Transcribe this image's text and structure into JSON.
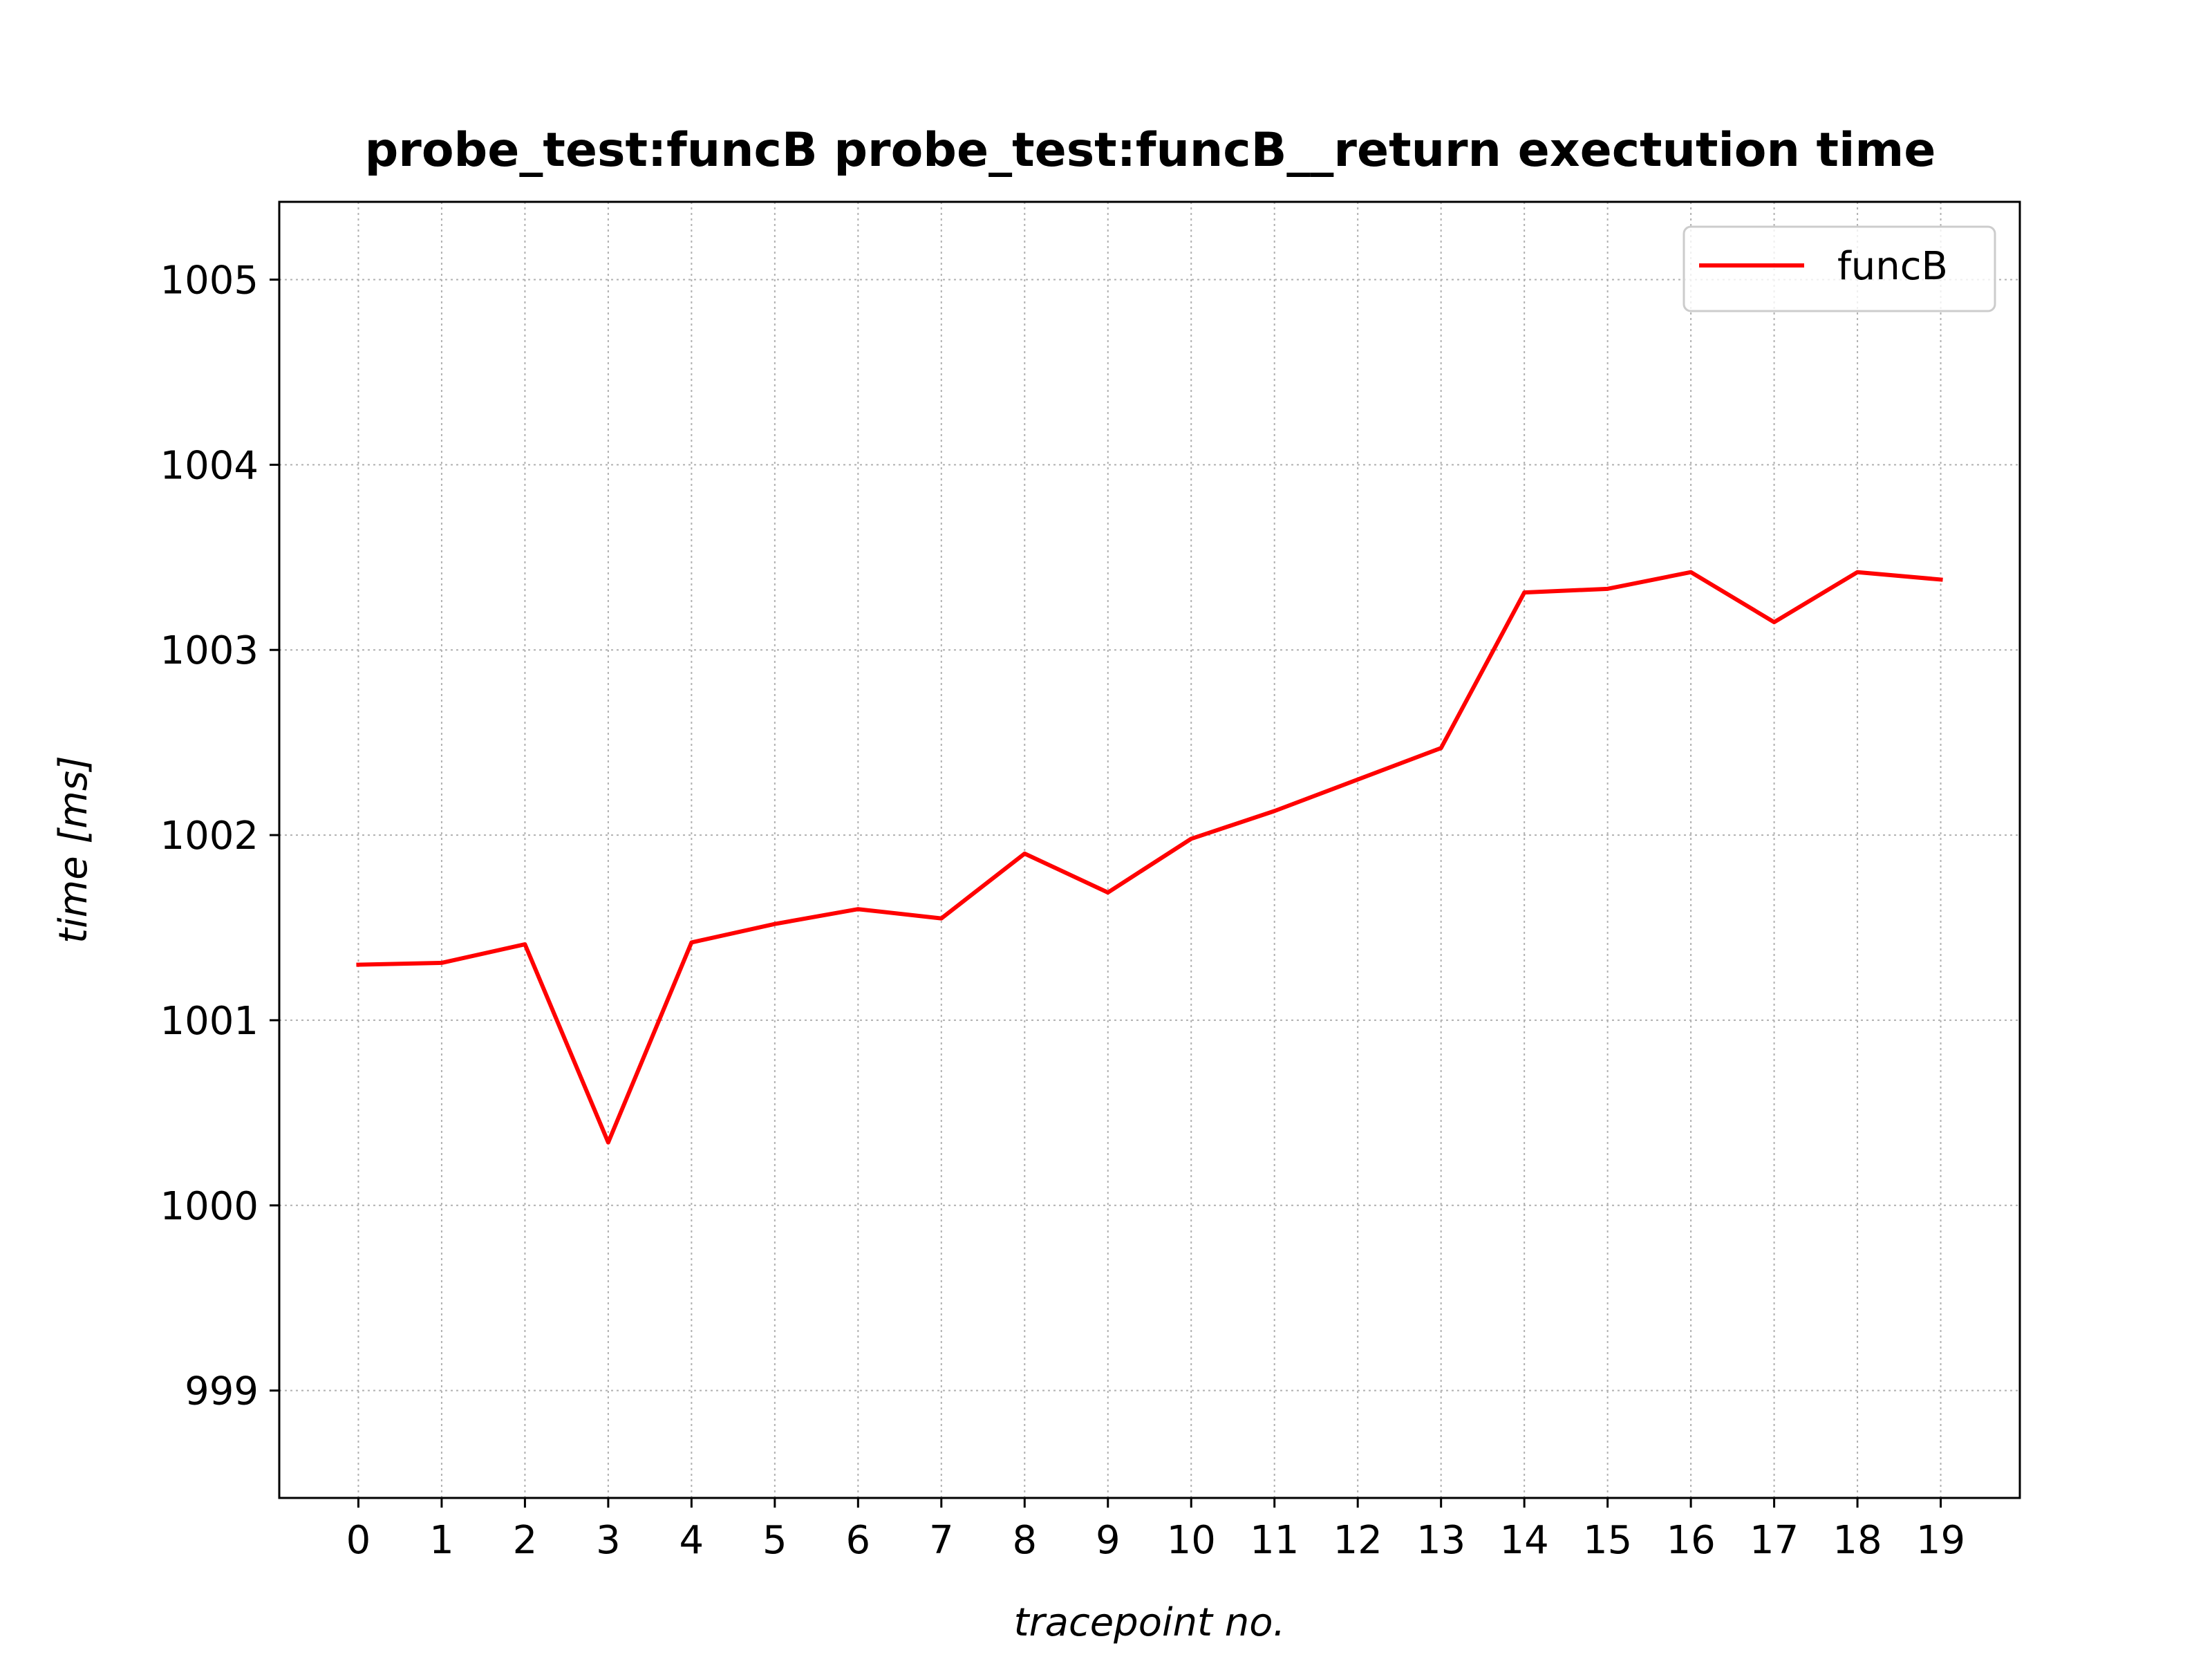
{
  "chart_data": {
    "type": "line",
    "title": "probe_test:funcB probe_test:funcB__return exectution time",
    "xlabel": "tracepoint no.",
    "ylabel": "time [ms]",
    "categories": [
      "0",
      "1",
      "2",
      "3",
      "4",
      "5",
      "6",
      "7",
      "8",
      "9",
      "10",
      "11",
      "12",
      "13",
      "14",
      "15",
      "16",
      "17",
      "18",
      "19"
    ],
    "x": [
      0,
      1,
      2,
      3,
      4,
      5,
      6,
      7,
      8,
      9,
      10,
      11,
      12,
      13,
      14,
      15,
      16,
      17,
      18,
      19
    ],
    "yticks": [
      999,
      1000,
      1001,
      1002,
      1003,
      1004,
      1005
    ],
    "ylim": [
      998.42,
      1005.42
    ],
    "xlim": [
      -0.95,
      19.95
    ],
    "grid": true,
    "legend_position": "upper right",
    "series": [
      {
        "name": "funcB",
        "color": "#ff0000",
        "values": [
          1001.3,
          1001.31,
          1001.41,
          1000.34,
          1001.42,
          1001.52,
          1001.6,
          1001.55,
          1001.9,
          1001.69,
          1001.98,
          1002.13,
          1002.3,
          1002.47,
          1003.31,
          1003.33,
          1003.42,
          1003.15,
          1003.42,
          1003.38
        ]
      }
    ]
  }
}
